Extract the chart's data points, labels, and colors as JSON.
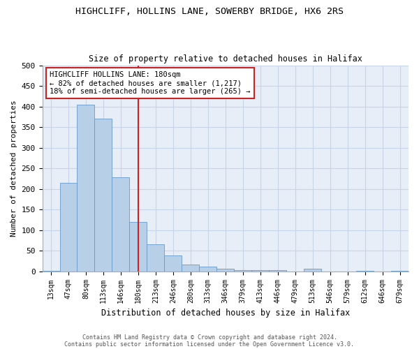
{
  "title_line1": "HIGHCLIFF, HOLLINS LANE, SOWERBY BRIDGE, HX6 2RS",
  "title_line2": "Size of property relative to detached houses in Halifax",
  "xlabel": "Distribution of detached houses by size in Halifax",
  "ylabel": "Number of detached properties",
  "categories": [
    "13sqm",
    "47sqm",
    "80sqm",
    "113sqm",
    "146sqm",
    "180sqm",
    "213sqm",
    "246sqm",
    "280sqm",
    "313sqm",
    "346sqm",
    "379sqm",
    "413sqm",
    "446sqm",
    "479sqm",
    "513sqm",
    "546sqm",
    "579sqm",
    "612sqm",
    "646sqm",
    "679sqm"
  ],
  "values": [
    2,
    215,
    405,
    370,
    228,
    120,
    65,
    38,
    17,
    12,
    6,
    3,
    3,
    3,
    0,
    6,
    0,
    0,
    2,
    0,
    1
  ],
  "bar_color": "#b8cfe8",
  "bar_edge_color": "#6699cc",
  "vline_x_index": 5,
  "vline_color": "#cc2222",
  "annotation_text": "HIGHCLIFF HOLLINS LANE: 180sqm\n← 82% of detached houses are smaller (1,217)\n18% of semi-detached houses are larger (265) →",
  "annotation_box_color": "white",
  "annotation_box_edge_color": "#cc2222",
  "ylim": [
    0,
    500
  ],
  "yticks": [
    0,
    50,
    100,
    150,
    200,
    250,
    300,
    350,
    400,
    450,
    500
  ],
  "grid_color": "#c8d4e8",
  "background_color": "#e8eef8",
  "footer_line1": "Contains HM Land Registry data © Crown copyright and database right 2024.",
  "footer_line2": "Contains public sector information licensed under the Open Government Licence v3.0."
}
